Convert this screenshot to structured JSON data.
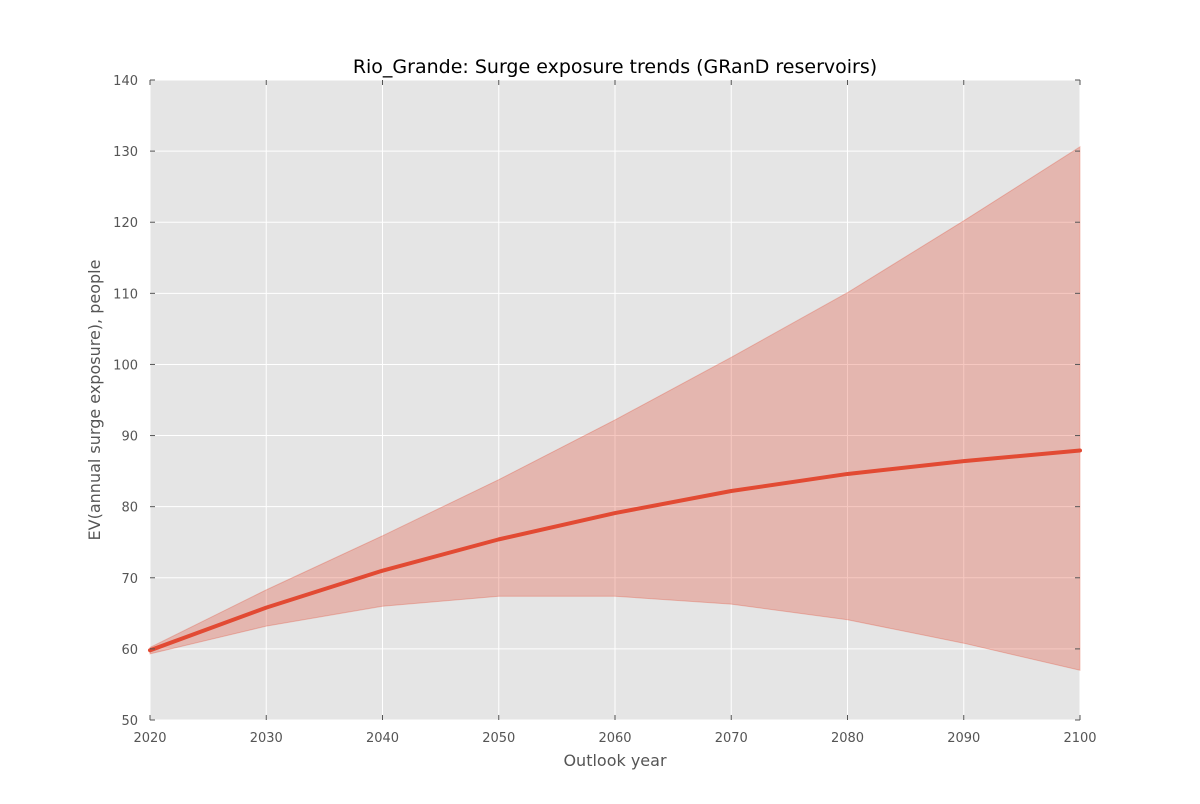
{
  "chart_data": {
    "type": "line",
    "title": "Rio_Grande: Surge exposure trends (GRanD reservoirs)",
    "xlabel": "Outlook year",
    "ylabel": "EV(annual surge exposure), people",
    "xlim": [
      2020,
      2100
    ],
    "ylim": [
      50,
      140
    ],
    "x_ticks": [
      2020,
      2030,
      2040,
      2050,
      2060,
      2070,
      2080,
      2090,
      2100
    ],
    "y_ticks": [
      50,
      60,
      70,
      80,
      90,
      100,
      110,
      120,
      130,
      140
    ],
    "grid": true,
    "legend": "none",
    "x": [
      2020,
      2030,
      2040,
      2050,
      2060,
      2070,
      2080,
      2090,
      2100
    ],
    "series": [
      {
        "values": [
          59.8,
          65.8,
          71.0,
          75.4,
          79.1,
          82.2,
          84.6,
          86.4,
          87.9
        ],
        "color": "#e24a33"
      }
    ],
    "band": {
      "lower": [
        59.3,
        63.2,
        66.0,
        67.4,
        67.4,
        66.3,
        64.1,
        60.8,
        57.0
      ],
      "upper": [
        60.2,
        68.3,
        75.9,
        83.8,
        92.2,
        101.0,
        110.1,
        120.2,
        130.6
      ],
      "color": "#e24a33"
    },
    "colors": {
      "plot_background": "#e5e5e5",
      "grid": "#ffffff",
      "line": "#e24a33",
      "band": "#e24a33"
    }
  }
}
